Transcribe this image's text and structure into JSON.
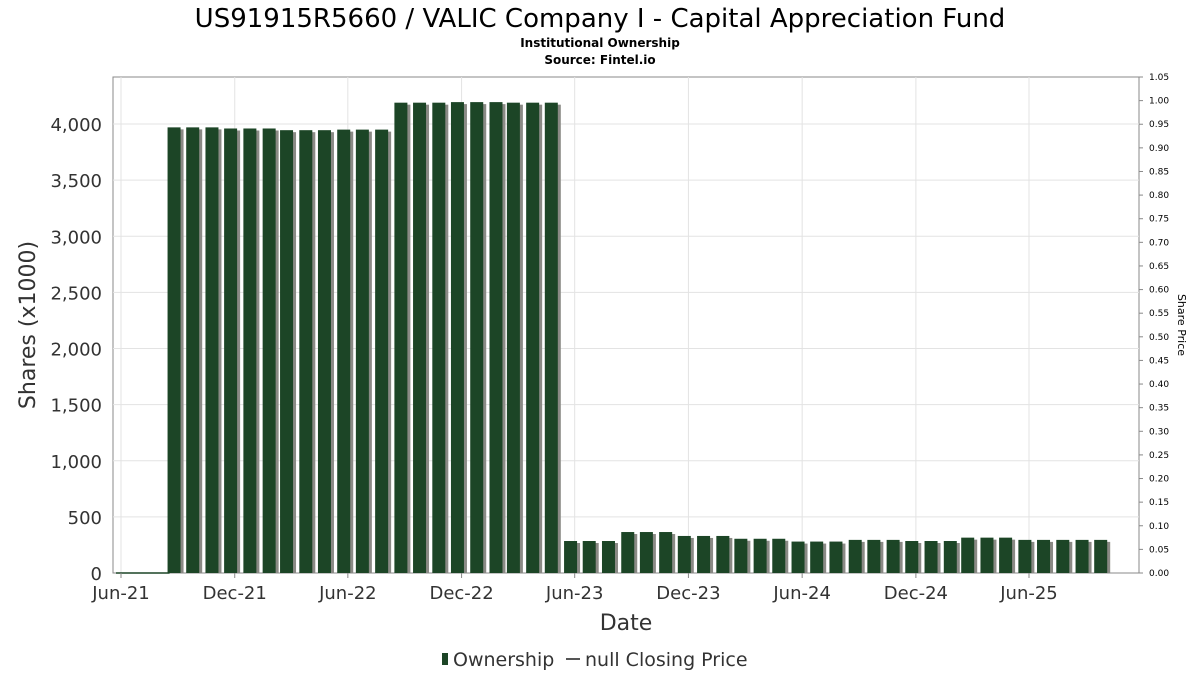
{
  "chart_data": {
    "type": "bar",
    "title": "US91915R5660 / VALIC Company I - Capital Appreciation Fund",
    "subtitle": "Institutional Ownership",
    "source": "Source: Fintel.io",
    "xlabel": "Date",
    "ylabel": "Shares (x1000)",
    "y2label": "Share Price",
    "ylim": [
      0,
      4400
    ],
    "y2lim": [
      0,
      1.05
    ],
    "grid": true,
    "legend_placement": "bottom-center",
    "x_ticks": [
      "Jun-21",
      "Dec-21",
      "Jun-22",
      "Dec-22",
      "Jun-23",
      "Dec-23",
      "Jun-24",
      "Dec-24",
      "Jun-25"
    ],
    "y_ticks": [
      "0",
      "500",
      "1,000",
      "1,500",
      "2,000",
      "2,500",
      "3,000",
      "3,500",
      "4,000"
    ],
    "y2_ticks": [
      "0.00",
      "0.05",
      "0.10",
      "0.15",
      "0.20",
      "0.25",
      "0.30",
      "0.35",
      "0.40",
      "0.45",
      "0.50",
      "0.55",
      "0.60",
      "0.65",
      "0.70",
      "0.75",
      "0.80",
      "0.85",
      "0.90",
      "0.95",
      "1.00",
      "1.05"
    ],
    "x_start": "2021-06-01",
    "x_end": "2025-12-31",
    "series": [
      {
        "name": "Ownership",
        "color": "#1c4526",
        "dates": [
          "2021-08-31",
          "2021-09-30",
          "2021-10-31",
          "2021-11-30",
          "2021-12-31",
          "2022-01-31",
          "2022-02-28",
          "2022-03-31",
          "2022-04-30",
          "2022-05-31",
          "2022-06-30",
          "2022-07-31",
          "2022-08-31",
          "2022-09-30",
          "2022-10-31",
          "2022-11-30",
          "2022-12-31",
          "2023-01-31",
          "2023-02-28",
          "2023-03-31",
          "2023-04-30",
          "2023-05-31",
          "2023-06-30",
          "2023-07-31",
          "2023-08-31",
          "2023-09-30",
          "2023-10-31",
          "2023-11-30",
          "2023-12-31",
          "2024-01-31",
          "2024-02-29",
          "2024-03-31",
          "2024-04-30",
          "2024-05-31",
          "2024-06-30",
          "2024-07-31",
          "2024-08-31",
          "2024-09-30",
          "2024-10-31",
          "2024-11-30",
          "2024-12-31",
          "2025-01-31",
          "2025-02-28",
          "2025-03-31",
          "2025-04-30",
          "2025-05-31",
          "2025-06-30",
          "2025-07-31",
          "2025-08-31",
          "2025-09-30"
        ],
        "values": [
          3970,
          3970,
          3970,
          3960,
          3960,
          3960,
          3945,
          3945,
          3945,
          3950,
          3950,
          3950,
          4190,
          4190,
          4190,
          4195,
          4195,
          4195,
          4190,
          4190,
          4190,
          285,
          285,
          285,
          365,
          365,
          365,
          330,
          330,
          330,
          305,
          305,
          305,
          280,
          280,
          280,
          295,
          295,
          295,
          285,
          285,
          285,
          315,
          315,
          315,
          295,
          295,
          295,
          295,
          295
        ]
      },
      {
        "name": "null Closing Price",
        "color": "#555555",
        "values": []
      }
    ]
  },
  "legend": {
    "ownership_label": "Ownership",
    "price_label": "null Closing Price"
  }
}
